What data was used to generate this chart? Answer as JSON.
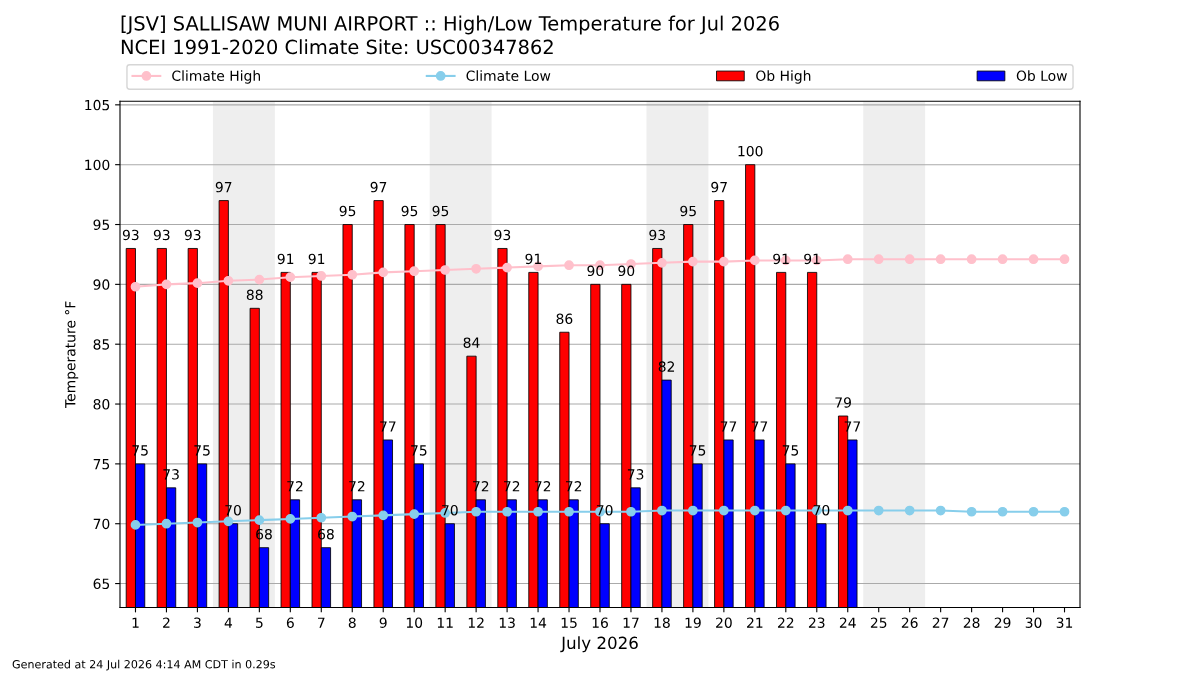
{
  "chart_data": {
    "type": "bar",
    "title": "[JSV] SALLISAW MUNI AIRPORT :: High/Low Temperature for Jul 2026",
    "subtitle": "NCEI 1991-2020 Climate Site: USC00347862",
    "xlabel": "July 2026",
    "ylabel": "Temperature °F",
    "x": [
      1,
      2,
      3,
      4,
      5,
      6,
      7,
      8,
      9,
      10,
      11,
      12,
      13,
      14,
      15,
      16,
      17,
      18,
      19,
      20,
      21,
      22,
      23,
      24,
      25,
      26,
      27,
      28,
      29,
      30,
      31
    ],
    "series": [
      {
        "name": "Climate High",
        "type": "line",
        "color": "#ffc0cb",
        "values": [
          89.8,
          90.0,
          90.1,
          90.3,
          90.4,
          90.6,
          90.7,
          90.8,
          91.0,
          91.1,
          91.2,
          91.3,
          91.4,
          91.5,
          91.6,
          91.6,
          91.7,
          91.8,
          91.9,
          91.9,
          92.0,
          92.0,
          92.0,
          92.1,
          92.1,
          92.1,
          92.1,
          92.1,
          92.1,
          92.1,
          92.1
        ]
      },
      {
        "name": "Climate Low",
        "type": "line",
        "color": "#87ceeb",
        "values": [
          69.9,
          70.0,
          70.1,
          70.2,
          70.3,
          70.4,
          70.5,
          70.6,
          70.7,
          70.8,
          70.9,
          71.0,
          71.0,
          71.0,
          71.0,
          71.0,
          71.0,
          71.1,
          71.1,
          71.1,
          71.1,
          71.1,
          71.1,
          71.1,
          71.1,
          71.1,
          71.1,
          71.0,
          71.0,
          71.0,
          71.0
        ]
      },
      {
        "name": "Ob High",
        "color": "#ff0000",
        "values": [
          93,
          93,
          93,
          97,
          88,
          91,
          91,
          95,
          97,
          95,
          95,
          84,
          93,
          91,
          86,
          90,
          90,
          93,
          95,
          97,
          100,
          91,
          91,
          79,
          null,
          null,
          null,
          null,
          null,
          null,
          null
        ],
        "value_labels": [
          "93",
          "93",
          "93",
          "97",
          "88",
          "91",
          "91",
          "95",
          "97",
          "95",
          "95",
          "84",
          "93",
          "91",
          "86",
          "90",
          "90",
          "93",
          "95",
          "97",
          "100",
          "91",
          "91",
          "79",
          null,
          null,
          null,
          null,
          null,
          null,
          null
        ]
      },
      {
        "name": "Ob Low",
        "color": "#0000ff",
        "values": [
          75,
          73,
          75,
          70,
          68,
          72,
          68,
          72,
          77,
          75,
          70,
          72,
          72,
          72,
          72,
          70,
          73,
          82,
          75,
          77,
          77,
          75,
          70,
          77,
          null,
          null,
          null,
          null,
          null,
          null,
          null
        ],
        "value_labels": [
          "75",
          "73",
          "75",
          "70",
          "68",
          "72",
          "68",
          "72",
          "77",
          "75",
          "70",
          "72",
          "72",
          "72",
          "72",
          "70",
          "73",
          "82",
          "75",
          "77",
          "77",
          "75",
          "70",
          "77",
          null,
          null,
          null,
          null,
          null,
          null,
          null
        ]
      }
    ],
    "xlim": [
      0.5,
      31.5
    ],
    "xticks": [
      1,
      2,
      3,
      4,
      5,
      6,
      7,
      8,
      9,
      10,
      11,
      12,
      13,
      14,
      15,
      16,
      17,
      18,
      19,
      20,
      21,
      22,
      23,
      24,
      25,
      26,
      27,
      28,
      29,
      30,
      31
    ],
    "ylim": [
      63,
      105.3
    ],
    "yticks": [
      65,
      70,
      75,
      80,
      85,
      90,
      95,
      100,
      105
    ],
    "bands": [
      {
        "axis": "x",
        "from": 3.5,
        "to": 5.5,
        "color": "#eeeeee"
      },
      {
        "axis": "x",
        "from": 10.5,
        "to": 12.5,
        "color": "#eeeeee"
      },
      {
        "axis": "x",
        "from": 17.5,
        "to": 19.5,
        "color": "#eeeeee"
      },
      {
        "axis": "x",
        "from": 24.5,
        "to": 26.5,
        "color": "#eeeeee"
      }
    ],
    "grid": "y",
    "legend": "top",
    "marker": "circle",
    "annotations": [
      "Generated at 24 Jul 2026 4:14 AM CDT in 0.29s"
    ]
  }
}
